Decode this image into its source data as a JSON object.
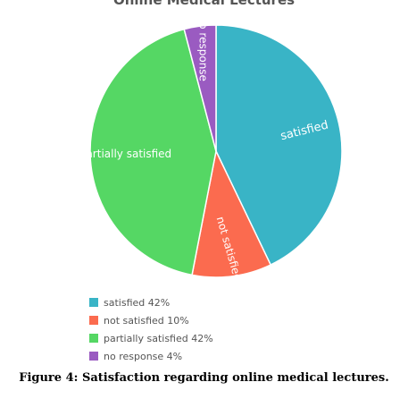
{
  "chart_data": {
    "type": "pie",
    "title": "Online Medical Lectures",
    "slices": [
      {
        "label": "satisfied",
        "value": 42,
        "color": "#39b4c6",
        "legend": "satisfied 42%"
      },
      {
        "label": "not satisfied",
        "value": 10,
        "color": "#fb6b4f",
        "legend": "not satisfied 10%"
      },
      {
        "label": "partially satisfied",
        "value": 42,
        "color": "#55d764",
        "legend": "partially satisfied 42%"
      },
      {
        "label": "no response",
        "value": 4,
        "color": "#9a5bc1",
        "legend": "no response 4%"
      }
    ],
    "legend_position": "bottom-left"
  },
  "caption": "Figure 4: Satisfaction regarding online medical lectures."
}
